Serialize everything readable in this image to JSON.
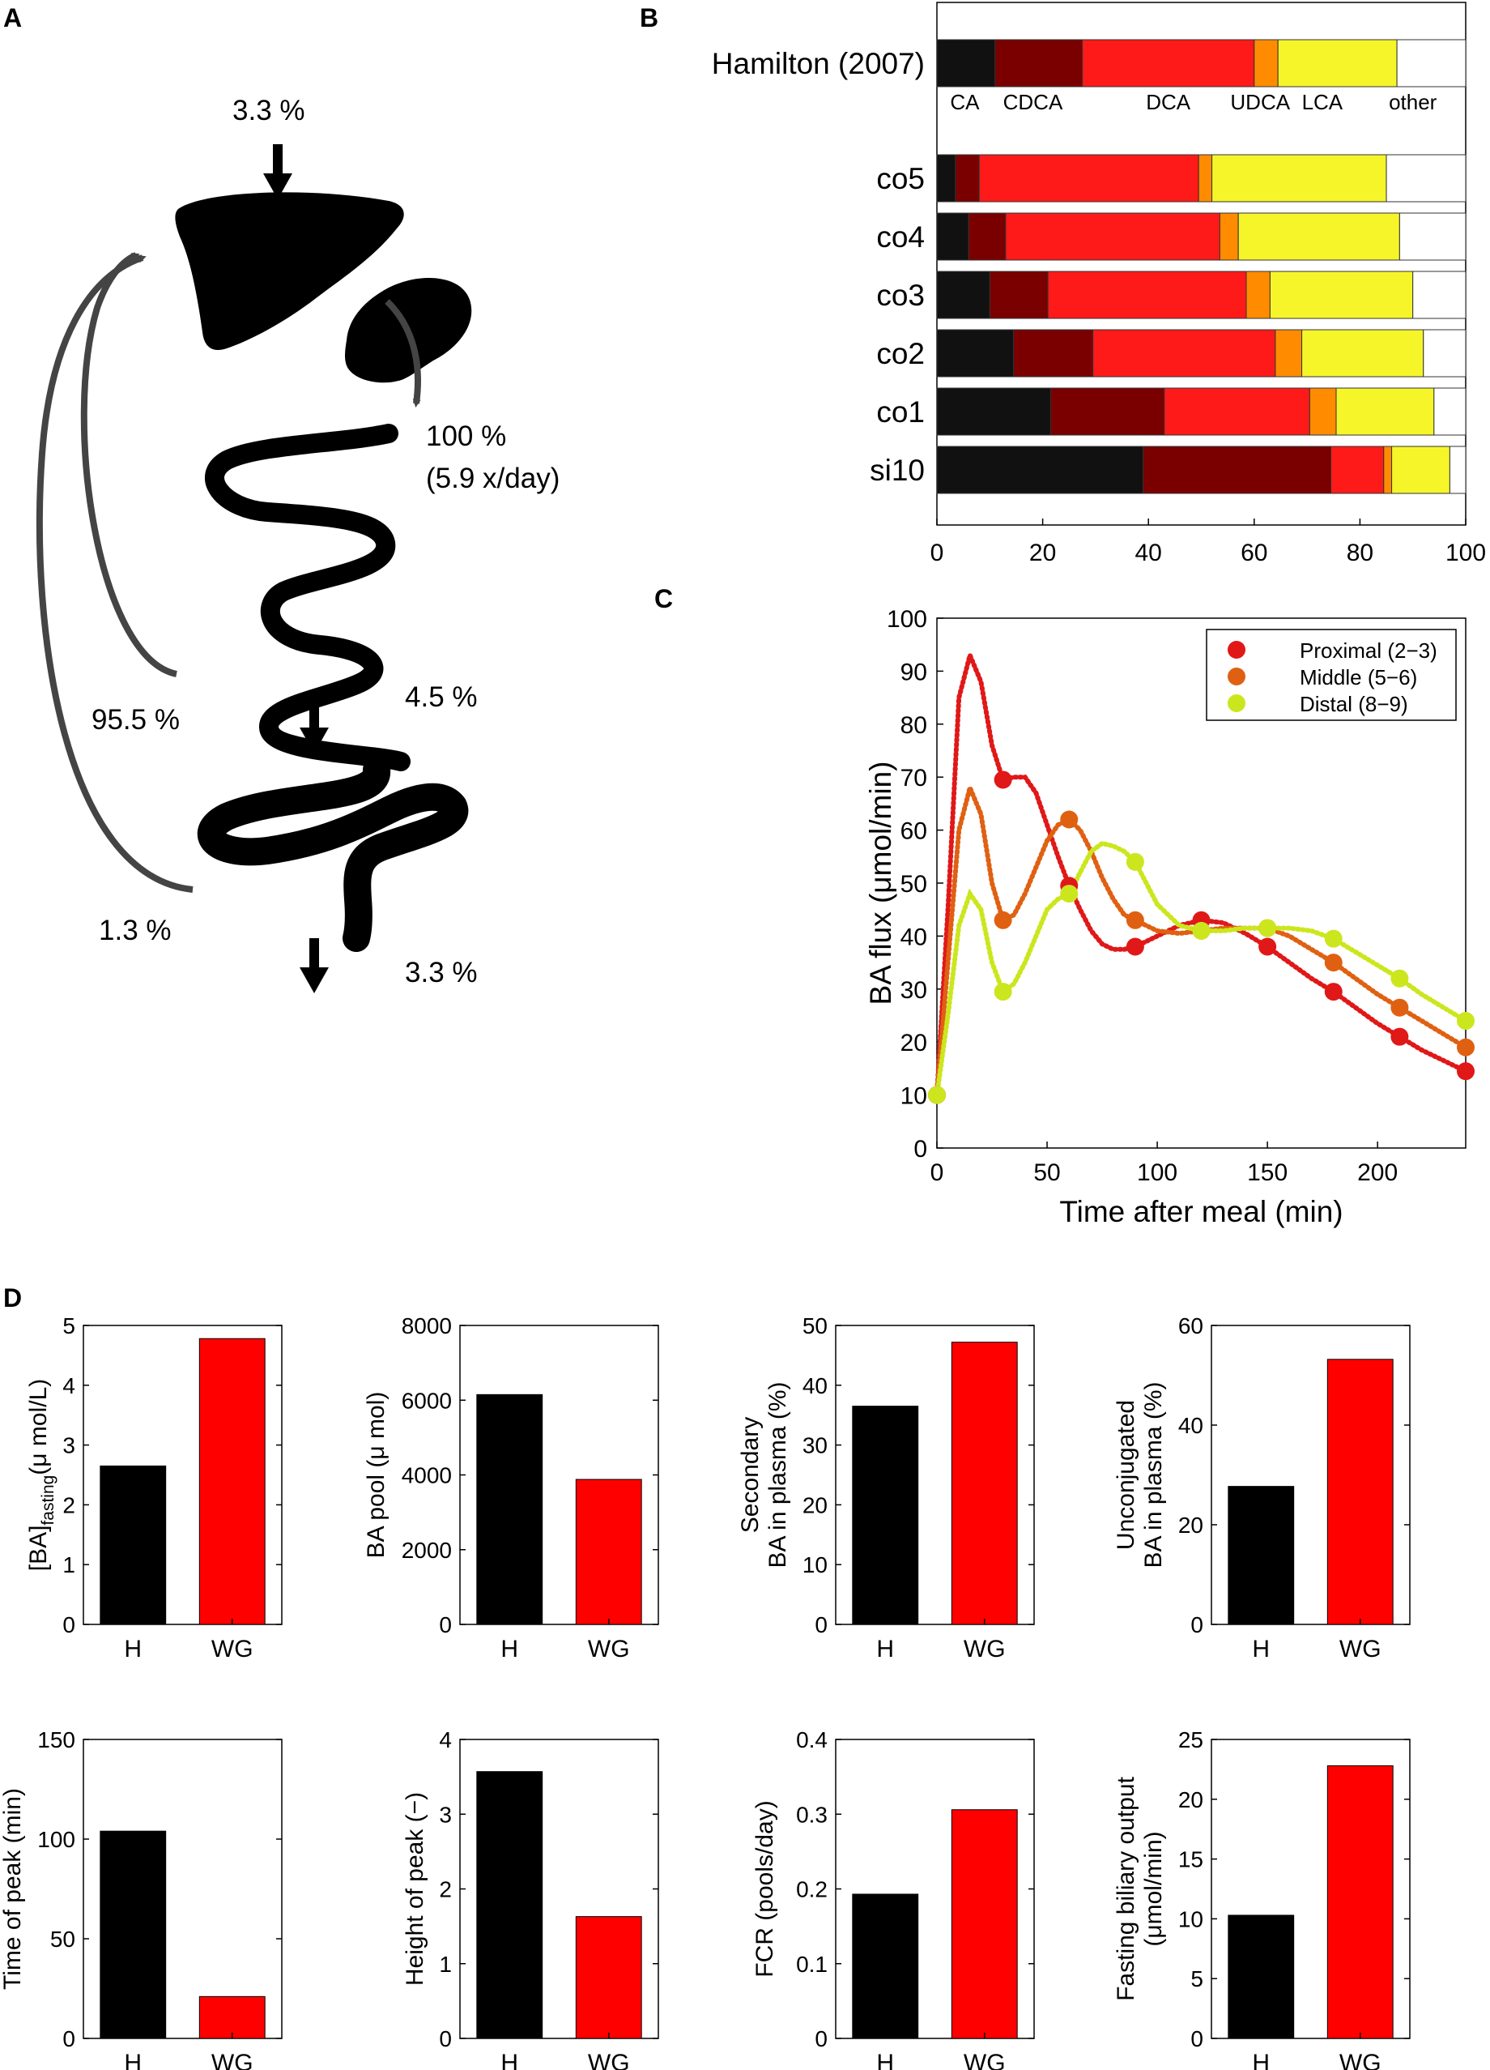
{
  "panel_labels": {
    "a": "A",
    "b": "B",
    "c": "C",
    "d": "D"
  },
  "panelA": {
    "liver_input": "3.3 %",
    "gallbladder_output": "100 %",
    "gallbladder_rate": "(5.9 x/day)",
    "small_intestine_passage": "4.5 %",
    "colon_excretion": "3.3 %",
    "si_reabsorption": "95.5 %",
    "colon_reabsorption": "1.3 %"
  },
  "colors": {
    "CA": "#111111",
    "CDCA": "#7a0000",
    "DCA": "#ff1a1a",
    "UDCA": "#ff8c00",
    "LCA": "#f5f52a",
    "other": "#ffffff",
    "proximal": "#e01818",
    "middle": "#e06012",
    "distal": "#cce61e",
    "H": "#000000",
    "WG": "#ff0000"
  },
  "chart_data": [
    {
      "id": "B",
      "type": "bar",
      "orientation": "horizontal-stacked",
      "categories": [
        "Hamilton (2007)",
        "co5",
        "co4",
        "co3",
        "co2",
        "co1",
        "si10"
      ],
      "stack_labels": [
        "CA",
        "CDCA",
        "DCA",
        "UDCA",
        "LCA",
        "other"
      ],
      "series": [
        {
          "name": "CA",
          "values": [
            11,
            3.5,
            6,
            10,
            14.5,
            21.5,
            39
          ]
        },
        {
          "name": "CDCA",
          "values": [
            16.5,
            4.5,
            7,
            11,
            15,
            21.5,
            35.5
          ]
        },
        {
          "name": "DCA",
          "values": [
            32.5,
            41.5,
            40.5,
            37.5,
            34.5,
            27.5,
            10
          ]
        },
        {
          "name": "UDCA",
          "values": [
            4.5,
            2.5,
            3.5,
            4.5,
            5,
            5,
            1.5
          ]
        },
        {
          "name": "LCA",
          "values": [
            22.5,
            33,
            30.5,
            27,
            23,
            18.5,
            11
          ]
        },
        {
          "name": "other",
          "values": [
            13,
            15,
            12.5,
            10,
            8,
            6,
            3
          ]
        }
      ],
      "xlim": [
        0,
        100
      ],
      "xticks": [
        "0",
        "20",
        "40",
        "60",
        "80",
        "100"
      ]
    },
    {
      "id": "C",
      "type": "line",
      "title": "",
      "xlabel": "Time after meal (min)",
      "ylabel": "BA flux (μmol/min)",
      "xlim": [
        0,
        240
      ],
      "ylim": [
        0,
        100
      ],
      "xticks": [
        "0",
        "50",
        "100",
        "150",
        "200"
      ],
      "yticks": [
        "0",
        "10",
        "20",
        "30",
        "40",
        "50",
        "60",
        "70",
        "80",
        "90",
        "100"
      ],
      "legend": "top-right",
      "x": [
        0,
        30,
        60,
        90,
        120,
        150,
        180,
        210,
        240
      ],
      "series": [
        {
          "name": "Proximal (2−3)",
          "values": [
            10,
            69.5,
            49.5,
            38,
            43,
            38,
            29.5,
            21,
            14.5
          ],
          "curve": [
            [
              0,
              10
            ],
            [
              5,
              45
            ],
            [
              10,
              85
            ],
            [
              15,
              93
            ],
            [
              20,
              88
            ],
            [
              25,
              76
            ],
            [
              30,
              69.5
            ],
            [
              35,
              70
            ],
            [
              40,
              70
            ],
            [
              45,
              67
            ],
            [
              50,
              61
            ],
            [
              55,
              55
            ],
            [
              60,
              49.5
            ],
            [
              65,
              45
            ],
            [
              70,
              41
            ],
            [
              75,
              38.5
            ],
            [
              80,
              37.5
            ],
            [
              85,
              37.5
            ],
            [
              90,
              38
            ],
            [
              100,
              40
            ],
            [
              110,
              42
            ],
            [
              120,
              43
            ],
            [
              130,
              42.5
            ],
            [
              140,
              40.5
            ],
            [
              150,
              38
            ],
            [
              160,
              35
            ],
            [
              170,
              32
            ],
            [
              180,
              29.5
            ],
            [
              190,
              26.5
            ],
            [
              200,
              23.5
            ],
            [
              210,
              21
            ],
            [
              220,
              18.5
            ],
            [
              230,
              16.5
            ],
            [
              240,
              14.5
            ]
          ]
        },
        {
          "name": "Middle (5−6)",
          "values": [
            10,
            43,
            62,
            43,
            41,
            41.5,
            35,
            26.5,
            19
          ],
          "curve": [
            [
              0,
              10
            ],
            [
              5,
              35
            ],
            [
              10,
              60
            ],
            [
              15,
              68
            ],
            [
              20,
              63
            ],
            [
              25,
              50
            ],
            [
              30,
              43
            ],
            [
              35,
              44
            ],
            [
              40,
              48
            ],
            [
              45,
              53
            ],
            [
              50,
              58
            ],
            [
              55,
              61
            ],
            [
              60,
              62
            ],
            [
              65,
              60
            ],
            [
              70,
              56
            ],
            [
              75,
              51
            ],
            [
              80,
              47
            ],
            [
              85,
              44
            ],
            [
              90,
              43
            ],
            [
              100,
              41
            ],
            [
              110,
              40.5
            ],
            [
              120,
              41
            ],
            [
              130,
              41.5
            ],
            [
              140,
              41.5
            ],
            [
              150,
              41.5
            ],
            [
              160,
              40
            ],
            [
              170,
              37.5
            ],
            [
              180,
              35
            ],
            [
              190,
              32
            ],
            [
              200,
              29
            ],
            [
              210,
              26.5
            ],
            [
              220,
              24
            ],
            [
              230,
              21.5
            ],
            [
              240,
              19
            ]
          ]
        },
        {
          "name": "Distal (8−9)",
          "values": [
            10,
            29.5,
            48,
            54,
            41,
            41.5,
            39.5,
            32,
            24
          ],
          "curve": [
            [
              0,
              10
            ],
            [
              5,
              25
            ],
            [
              10,
              42
            ],
            [
              15,
              48
            ],
            [
              20,
              45
            ],
            [
              25,
              35
            ],
            [
              30,
              29.5
            ],
            [
              35,
              31
            ],
            [
              40,
              35
            ],
            [
              45,
              40
            ],
            [
              50,
              45
            ],
            [
              55,
              47
            ],
            [
              60,
              48
            ],
            [
              65,
              52
            ],
            [
              70,
              56
            ],
            [
              75,
              57.5
            ],
            [
              80,
              57
            ],
            [
              85,
              56
            ],
            [
              90,
              54
            ],
            [
              95,
              50
            ],
            [
              100,
              46
            ],
            [
              110,
              42
            ],
            [
              120,
              41
            ],
            [
              130,
              41
            ],
            [
              140,
              41.5
            ],
            [
              150,
              41.5
            ],
            [
              160,
              41.5
            ],
            [
              170,
              41
            ],
            [
              180,
              39.5
            ],
            [
              190,
              37
            ],
            [
              200,
              34.5
            ],
            [
              210,
              32
            ],
            [
              220,
              29
            ],
            [
              230,
              26.5
            ],
            [
              240,
              24
            ]
          ]
        }
      ]
    },
    {
      "id": "D1",
      "type": "bar",
      "categories": [
        "H",
        "WG"
      ],
      "values": [
        2.65,
        4.78
      ],
      "ylabel": "[BA]",
      "ylabel_sub": "fasting",
      "ylabel_tail": "(μ mol/L)",
      "ylim": [
        0,
        5
      ],
      "yticks": [
        "0",
        "1",
        "2",
        "3",
        "4",
        "5"
      ]
    },
    {
      "id": "D2",
      "type": "bar",
      "categories": [
        "H",
        "WG"
      ],
      "values": [
        6150,
        3880
      ],
      "ylabel": "BA pool (μ mol)",
      "ylim": [
        0,
        8000
      ],
      "yticks": [
        "0",
        "2000",
        "4000",
        "6000",
        "8000"
      ]
    },
    {
      "id": "D3",
      "type": "bar",
      "categories": [
        "H",
        "WG"
      ],
      "values": [
        36.5,
        47.2
      ],
      "ylabel": "Secondary",
      "ylabel2": "BA in plasma (%)",
      "ylim": [
        0,
        50
      ],
      "yticks": [
        "0",
        "10",
        "20",
        "30",
        "40",
        "50"
      ]
    },
    {
      "id": "D4",
      "type": "bar",
      "categories": [
        "H",
        "WG"
      ],
      "values": [
        27.7,
        53.2
      ],
      "ylabel": "Unconjugated",
      "ylabel2": "BA in plasma (%)",
      "ylim": [
        0,
        60
      ],
      "yticks": [
        "0",
        "20",
        "40",
        "60"
      ]
    },
    {
      "id": "D5",
      "type": "bar",
      "categories": [
        "H",
        "WG"
      ],
      "values": [
        104,
        21
      ],
      "ylabel": "Time of peak (min)",
      "ylim": [
        0,
        150
      ],
      "yticks": [
        "0",
        "50",
        "100",
        "150"
      ]
    },
    {
      "id": "D6",
      "type": "bar",
      "categories": [
        "H",
        "WG"
      ],
      "values": [
        3.57,
        1.63
      ],
      "ylabel": "Height of peak (−)",
      "ylim": [
        0,
        4
      ],
      "yticks": [
        "0",
        "1",
        "2",
        "3",
        "4"
      ]
    },
    {
      "id": "D7",
      "type": "bar",
      "categories": [
        "H",
        "WG"
      ],
      "values": [
        0.193,
        0.306
      ],
      "ylabel": "FCR (pools/day)",
      "ylim": [
        0,
        0.4
      ],
      "yticks": [
        "0",
        "0.1",
        "0.2",
        "0.3",
        "0.4"
      ]
    },
    {
      "id": "D8",
      "type": "bar",
      "categories": [
        "H",
        "WG"
      ],
      "values": [
        10.3,
        22.8
      ],
      "ylabel": "Fasting biliary output",
      "ylabel2": "(μmol/min)",
      "ylim": [
        0,
        25
      ],
      "yticks": [
        "0",
        "5",
        "10",
        "15",
        "20",
        "25"
      ]
    }
  ]
}
